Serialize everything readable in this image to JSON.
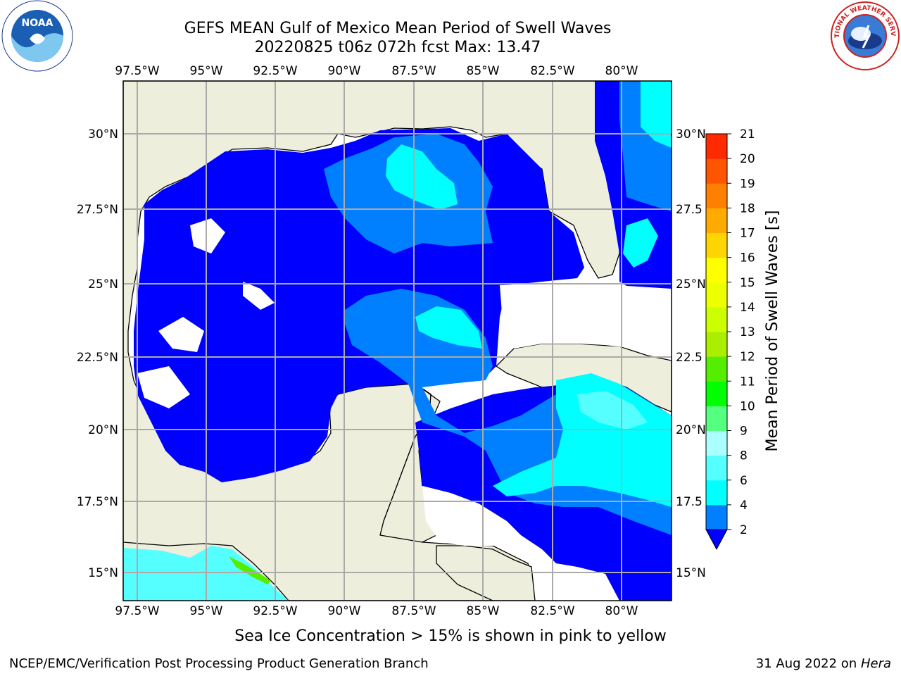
{
  "title": {
    "line1": "GEFS MEAN Gulf of Mexico Mean Period of Swell Waves",
    "line2": "20220825 t06z 072h fcst   Max: 13.47"
  },
  "logos": {
    "left": {
      "name": "noaa-logo",
      "text": "NOAA"
    },
    "right": {
      "name": "national-weather-service-logo",
      "text": "NATIONAL WEATHER SERVICE"
    }
  },
  "map": {
    "lon_labels": [
      "97.5°W",
      "95°W",
      "92.5°W",
      "90°W",
      "87.5°W",
      "85°W",
      "82.5°W",
      "80°W"
    ],
    "lat_labels_left": [
      "30°N",
      "27.5°N",
      "25°N",
      "22.5°N",
      "20°N",
      "17.5°N",
      "15°N"
    ],
    "lat_labels_right": [
      "30°N",
      "27.5",
      "25°N",
      "22.5",
      "20°N",
      "17.5",
      "15°N"
    ],
    "land_color": "#eeeedd",
    "gridline_color": "#aaaaaa"
  },
  "colorbar": {
    "label": "Mean Period of Swell Waves [s]",
    "ticks": [
      "2",
      "4",
      "6",
      "8",
      "9",
      "10",
      "11",
      "12",
      "13",
      "14",
      "15",
      "16",
      "17",
      "18",
      "19",
      "20",
      "21"
    ],
    "colors": [
      "#0000ff",
      "#0080ff",
      "#00ffff",
      "#55ffff",
      "#aaffff",
      "#55ff7f",
      "#00ff00",
      "#55ee00",
      "#aaee00",
      "#ccff00",
      "#eeff00",
      "#ffff00",
      "#ffd500",
      "#ffaa00",
      "#ff8000",
      "#ff5500",
      "#ff2a00",
      "#ff0000"
    ],
    "extend": "min"
  },
  "footer": {
    "note": "Sea Ice Concentration > 15% is shown in pink to yellow",
    "branch": "NCEP/EMC/Verification Post Processing Product Generation Branch",
    "date": "31 Aug 2022 on ",
    "machine": "Hera"
  }
}
